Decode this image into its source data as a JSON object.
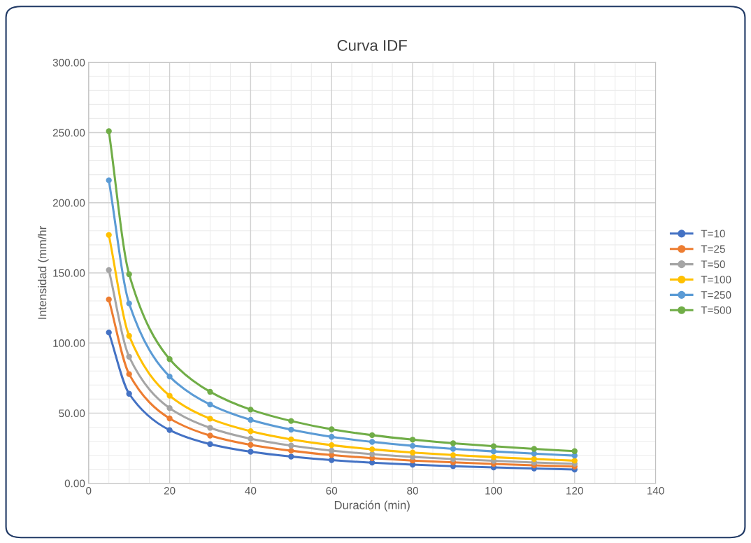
{
  "chart_data": {
    "type": "line",
    "title": "Curva IDF",
    "xlabel": "Duración (min)",
    "ylabel": "Intensidad (mm/hr",
    "x": [
      5,
      10,
      20,
      30,
      40,
      50,
      60,
      70,
      80,
      90,
      100,
      110,
      120
    ],
    "series": [
      {
        "name": "T=10",
        "color": "#4472c4",
        "values": [
          107.5,
          63.8,
          37.9,
          27.9,
          22.5,
          19.0,
          16.5,
          14.7,
          13.3,
          12.2,
          11.3,
          10.5,
          9.8
        ]
      },
      {
        "name": "T=25",
        "color": "#ed7d31",
        "values": [
          131.0,
          77.8,
          46.2,
          34.0,
          27.4,
          23.2,
          20.1,
          17.9,
          16.2,
          14.9,
          13.8,
          12.8,
          11.9
        ]
      },
      {
        "name": "T=50",
        "color": "#a5a5a5",
        "values": [
          152.0,
          90.2,
          53.6,
          39.5,
          31.8,
          26.9,
          23.3,
          20.8,
          18.8,
          17.3,
          16.0,
          14.8,
          13.9
        ]
      },
      {
        "name": "T=100",
        "color": "#ffc000",
        "values": [
          177.0,
          105.1,
          62.4,
          46.0,
          37.1,
          31.3,
          27.2,
          24.2,
          21.9,
          20.1,
          18.6,
          17.3,
          16.1
        ]
      },
      {
        "name": "T=250",
        "color": "#5b9bd5",
        "values": [
          216.0,
          128.2,
          76.1,
          56.1,
          45.2,
          38.2,
          33.1,
          29.5,
          26.7,
          24.5,
          22.7,
          21.1,
          19.7
        ]
      },
      {
        "name": "T=500",
        "color": "#70ad47",
        "values": [
          251.0,
          149.0,
          88.5,
          65.2,
          52.5,
          44.4,
          38.5,
          34.3,
          31.1,
          28.5,
          26.4,
          24.5,
          22.9
        ]
      }
    ],
    "xlim": [
      0,
      140
    ],
    "xticks": [
      0,
      20,
      40,
      60,
      80,
      100,
      120,
      140
    ],
    "ylim": [
      0,
      300
    ],
    "yticks": [
      {
        "value": 0,
        "label": "0.00"
      },
      {
        "value": 50,
        "label": "50.00"
      },
      {
        "value": 100,
        "label": "100.00"
      },
      {
        "value": 150,
        "label": "150.00"
      },
      {
        "value": 200,
        "label": "200.00"
      },
      {
        "value": 250,
        "label": "250.00"
      },
      {
        "value": 300,
        "label": "300.00"
      }
    ],
    "grid": true,
    "legend": "right",
    "marker": "circle",
    "line_style": "solid"
  }
}
